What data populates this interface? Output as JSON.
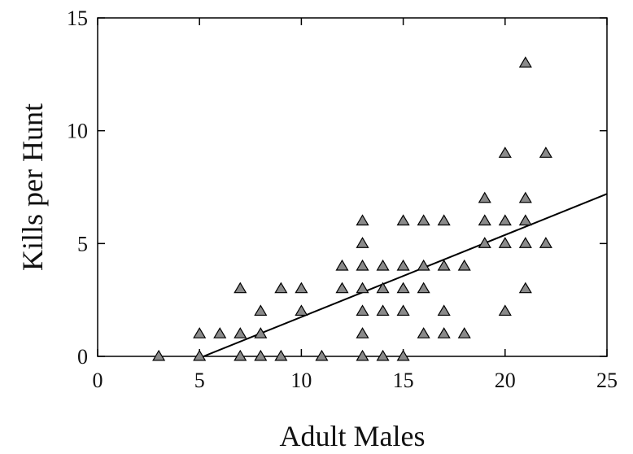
{
  "chart_data": {
    "type": "scatter",
    "title": "",
    "xlabel": "Adult Males",
    "ylabel": "Kills per Hunt",
    "xlim": [
      0,
      25
    ],
    "ylim": [
      0,
      15
    ],
    "x_ticks": [
      0,
      5,
      10,
      15,
      20,
      25
    ],
    "y_ticks": [
      0,
      5,
      10,
      15
    ],
    "grid": false,
    "legend": "none",
    "marker": "triangle",
    "marker_color": "#8a8a8a",
    "series": [
      {
        "points": [
          [
            3,
            0
          ],
          [
            5,
            0
          ],
          [
            5,
            1
          ],
          [
            6,
            1
          ],
          [
            7,
            0
          ],
          [
            7,
            1
          ],
          [
            7,
            3
          ],
          [
            8,
            0
          ],
          [
            8,
            1
          ],
          [
            8,
            2
          ],
          [
            9,
            0
          ],
          [
            9,
            3
          ],
          [
            10,
            2
          ],
          [
            10,
            3
          ],
          [
            11,
            0
          ],
          [
            12,
            3
          ],
          [
            12,
            4
          ],
          [
            13,
            0
          ],
          [
            13,
            1
          ],
          [
            13,
            2
          ],
          [
            13,
            3
          ],
          [
            13,
            4
          ],
          [
            13,
            5
          ],
          [
            13,
            6
          ],
          [
            14,
            0
          ],
          [
            14,
            2
          ],
          [
            14,
            3
          ],
          [
            14,
            4
          ],
          [
            15,
            0
          ],
          [
            15,
            2
          ],
          [
            15,
            3
          ],
          [
            15,
            4
          ],
          [
            15,
            6
          ],
          [
            16,
            1
          ],
          [
            16,
            3
          ],
          [
            16,
            4
          ],
          [
            16,
            6
          ],
          [
            17,
            1
          ],
          [
            17,
            2
          ],
          [
            17,
            4
          ],
          [
            17,
            6
          ],
          [
            18,
            1
          ],
          [
            18,
            4
          ],
          [
            19,
            5
          ],
          [
            19,
            6
          ],
          [
            19,
            7
          ],
          [
            20,
            2
          ],
          [
            20,
            5
          ],
          [
            20,
            6
          ],
          [
            20,
            9
          ],
          [
            21,
            3
          ],
          [
            21,
            5
          ],
          [
            21,
            6
          ],
          [
            21,
            7
          ],
          [
            21,
            13
          ],
          [
            22,
            5
          ],
          [
            22,
            9
          ]
        ]
      }
    ],
    "fit_line": {
      "type": "line",
      "points": [
        [
          5.2,
          0
        ],
        [
          25,
          7.2
        ]
      ],
      "color": "#000000"
    }
  }
}
